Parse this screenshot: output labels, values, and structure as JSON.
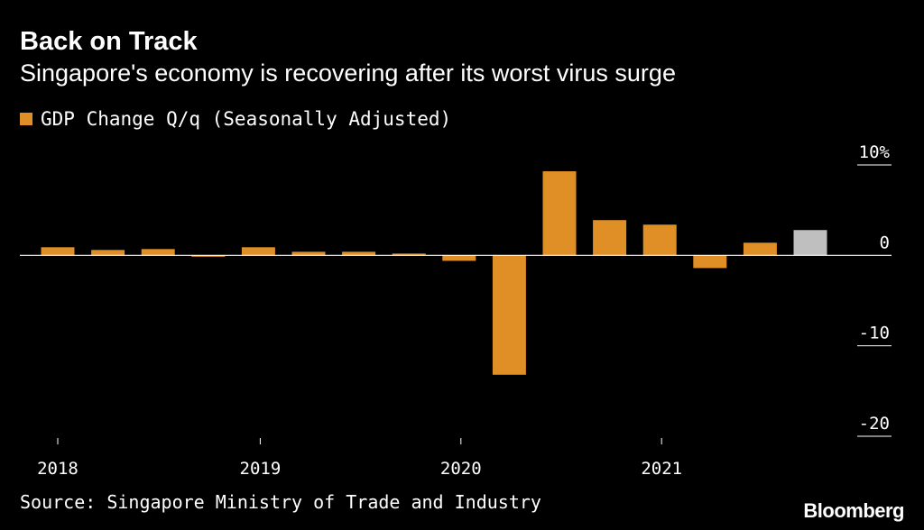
{
  "header": {
    "title": "Back on Track",
    "subtitle": "Singapore's economy is recovering after its worst virus surge"
  },
  "legend": {
    "label": "GDP Change Q/q (Seasonally Adjusted)",
    "color": "#e08e26"
  },
  "footer": {
    "source": "Source: Singapore Ministry of Trade and Industry",
    "brand": "Bloomberg"
  },
  "chart_data": {
    "type": "bar",
    "x": [
      "2018 Q1",
      "2018 Q2",
      "2018 Q3",
      "2018 Q4",
      "2019 Q1",
      "2019 Q2",
      "2019 Q3",
      "2019 Q4",
      "2020 Q1",
      "2020 Q2",
      "2020 Q3",
      "2020 Q4",
      "2021 Q1",
      "2021 Q2",
      "2021 Q3",
      "2021 Q4"
    ],
    "values": [
      0.9,
      0.6,
      0.7,
      -0.1,
      0.9,
      0.4,
      0.4,
      0.2,
      -0.6,
      -13.2,
      9.3,
      3.9,
      3.4,
      -1.4,
      1.4,
      2.8
    ],
    "colors": [
      "#e08e26",
      "#e08e26",
      "#e08e26",
      "#e08e26",
      "#e08e26",
      "#e08e26",
      "#e08e26",
      "#e08e26",
      "#e08e26",
      "#e08e26",
      "#e08e26",
      "#e08e26",
      "#e08e26",
      "#e08e26",
      "#e08e26",
      "#bfbfbf"
    ],
    "x_ticks": [
      {
        "index": 0,
        "label": "2018"
      },
      {
        "index": 4,
        "label": "2019"
      },
      {
        "index": 8,
        "label": "2020"
      },
      {
        "index": 12,
        "label": "2021"
      }
    ],
    "y_ticks": [
      {
        "value": 10,
        "label": "10%"
      },
      {
        "value": 0,
        "label": "0"
      },
      {
        "value": -10,
        "label": "-10"
      },
      {
        "value": -20,
        "label": "-20"
      }
    ],
    "ylim": [
      -20,
      10
    ],
    "axis_color": "#ffffff"
  }
}
